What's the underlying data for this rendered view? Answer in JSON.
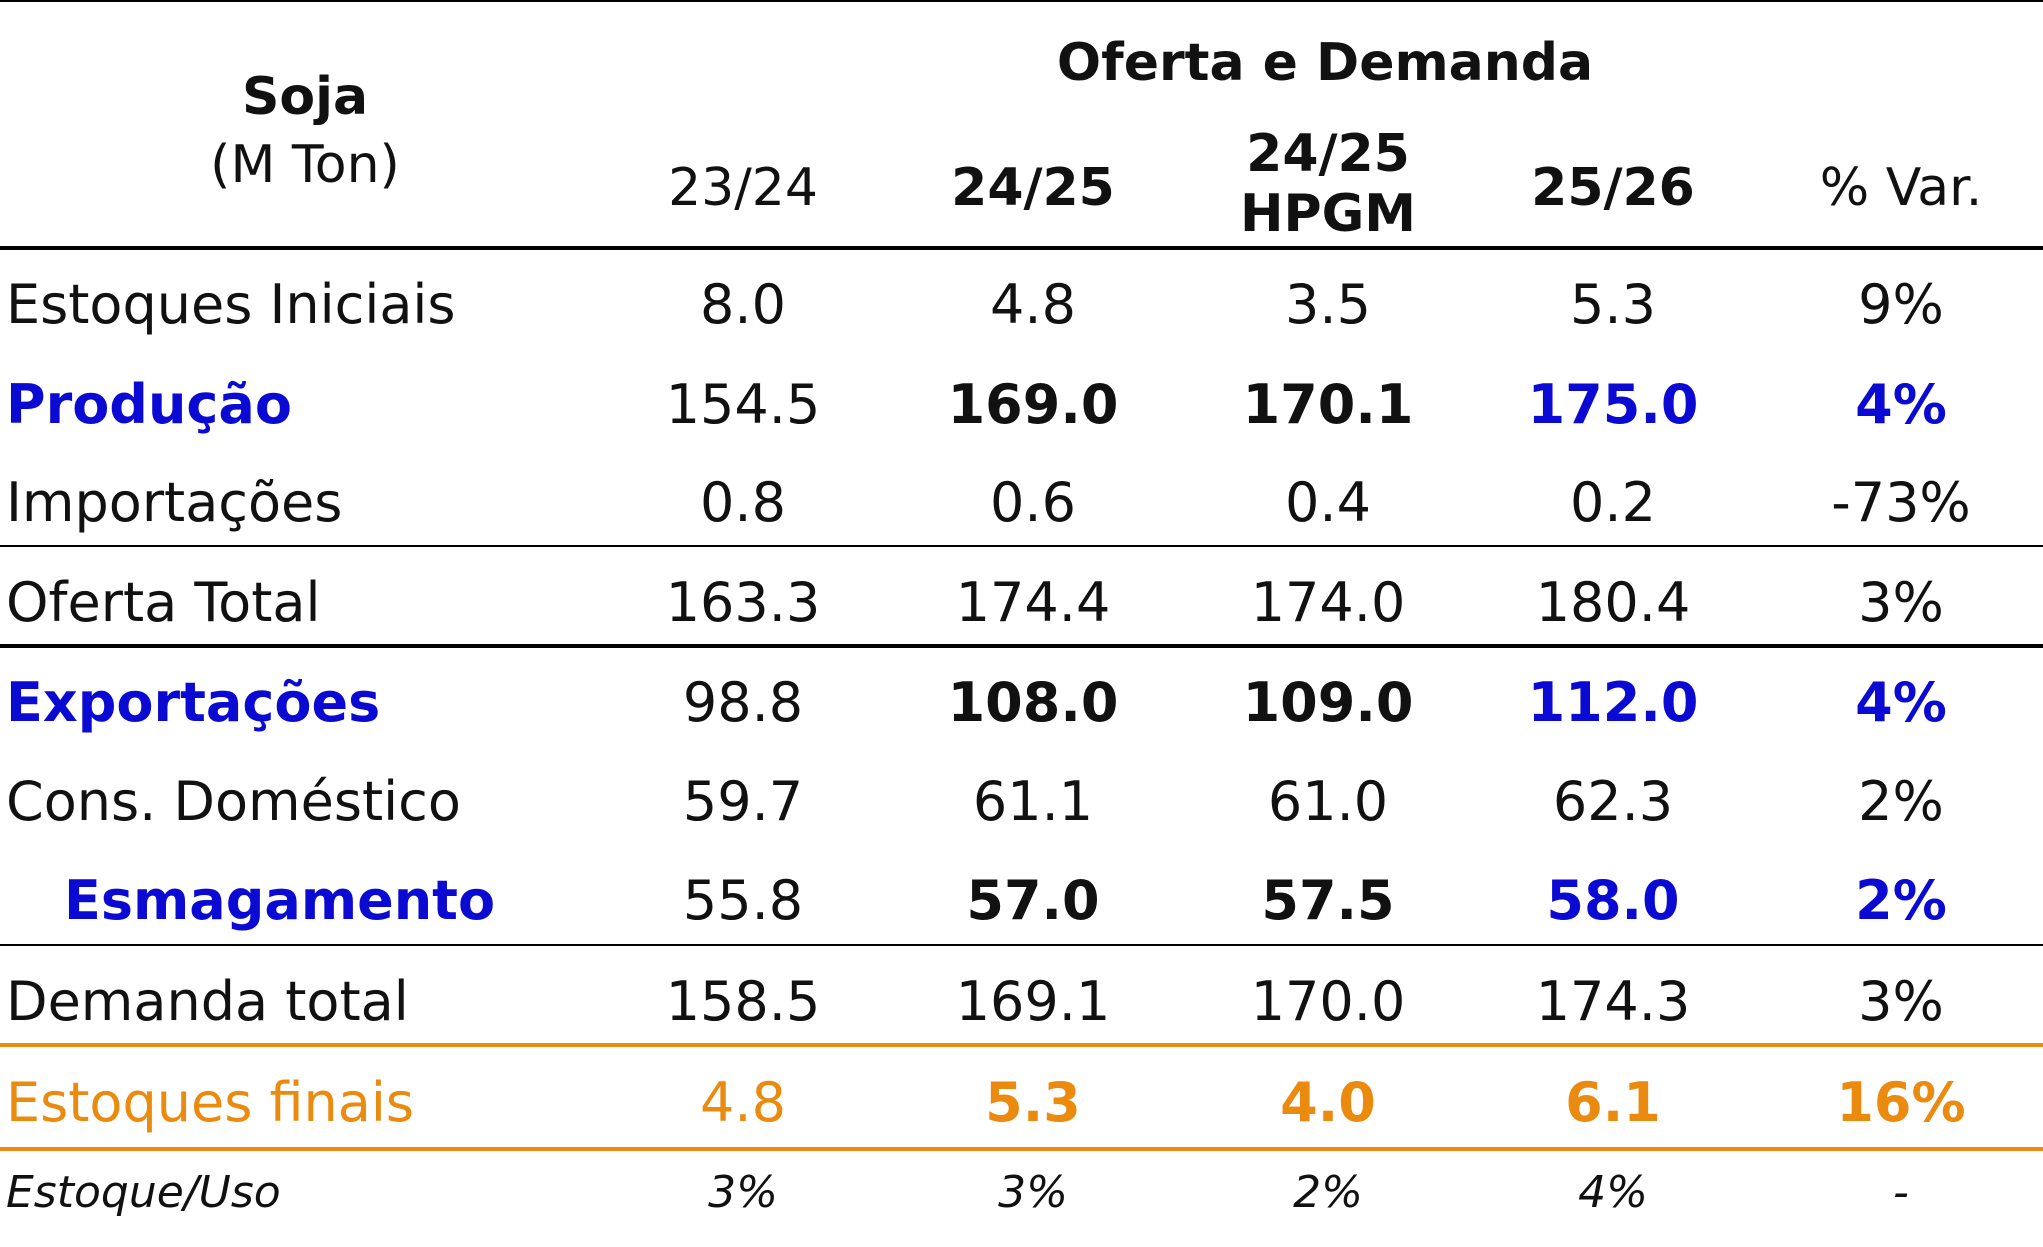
{
  "header": {
    "title": "Soja",
    "unit": "(M Ton)",
    "group": "Oferta e Demanda",
    "columns": [
      {
        "line1": "23/24",
        "line2": ""
      },
      {
        "line1": "24/25",
        "line2": ""
      },
      {
        "line1": "24/25",
        "line2": "HPGM"
      },
      {
        "line1": "25/26",
        "line2": ""
      },
      {
        "line1": "% Var.",
        "line2": ""
      }
    ]
  },
  "rows": [
    {
      "label": "Estoques Iniciais",
      "values": [
        "8.0",
        "4.8",
        "3.5",
        "5.3",
        "9%"
      ]
    },
    {
      "label": "Produção",
      "values": [
        "154.5",
        "169.0",
        "170.1",
        "175.0",
        "4%"
      ]
    },
    {
      "label": "Importações",
      "values": [
        "0.8",
        "0.6",
        "0.4",
        "0.2",
        "-73%"
      ]
    },
    {
      "label": "Oferta Total",
      "values": [
        "163.3",
        "174.4",
        "174.0",
        "180.4",
        "3%"
      ]
    },
    {
      "label": "Exportações",
      "values": [
        "98.8",
        "108.0",
        "109.0",
        "112.0",
        "4%"
      ]
    },
    {
      "label": "Cons. Doméstico",
      "values": [
        "59.7",
        "61.1",
        "61.0",
        "62.3",
        "2%"
      ]
    },
    {
      "label": "Esmagamento",
      "values": [
        "55.8",
        "57.0",
        "57.5",
        "58.0",
        "2%"
      ]
    },
    {
      "label": "Demanda total",
      "values": [
        "158.5",
        "169.1",
        "170.0",
        "174.3",
        "3%"
      ]
    },
    {
      "label": "Estoques finais",
      "values": [
        "4.8",
        "5.3",
        "4.0",
        "6.1",
        "16%"
      ]
    },
    {
      "label": "Estoque/Uso",
      "values": [
        "3%",
        "3%",
        "2%",
        "4%",
        "-"
      ]
    }
  ],
  "colors": {
    "highlight_blue": "#0a0ad2",
    "highlight_orange": "#ea8a0f",
    "text": "#111111"
  }
}
